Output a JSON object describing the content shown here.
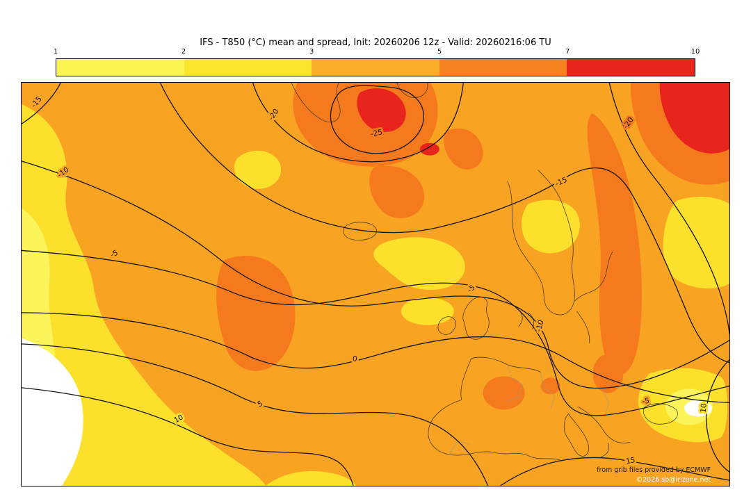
{
  "title": "IFS - T850 (°C) mean and spread, Init: 20260206 12z - Valid: 20260216:06 TU",
  "colorbar": {
    "tick_labels": [
      "1",
      "2",
      "3",
      "5",
      "7",
      "10"
    ],
    "segments": [
      {
        "range": "1-2",
        "color": "#FCF452"
      },
      {
        "range": "2-3",
        "color": "#FAE62C"
      },
      {
        "range": "3-5",
        "color": "#F9AE29"
      },
      {
        "range": "5-7",
        "color": "#F5831F"
      },
      {
        "range": "7-10",
        "color": "#E8251D"
      }
    ]
  },
  "map": {
    "palette": {
      "spread_below_1": "#FFFFFF",
      "spread_1_2": "#FCF45B",
      "spread_2_3": "#FBE02C",
      "spread_3_5": "#F9A322",
      "spread_5_7": "#F57A1E",
      "spread_7_10": "#E8251D"
    },
    "contour_levels_c": [
      -25,
      -20,
      -15,
      -10,
      -5,
      0,
      5,
      10,
      15
    ],
    "contour_labels": [
      {
        "text": "-25"
      },
      {
        "text": "-20"
      },
      {
        "text": "-20"
      },
      {
        "text": "-15"
      },
      {
        "text": "-15"
      },
      {
        "text": "-10"
      },
      {
        "text": "-10"
      },
      {
        "text": "-5"
      },
      {
        "text": "-5"
      },
      {
        "text": "-5"
      },
      {
        "text": "0"
      },
      {
        "text": "5"
      },
      {
        "text": "10"
      },
      {
        "text": "10"
      },
      {
        "text": "15"
      }
    ],
    "credit_line1": "from grib files provided by ECMWF",
    "credit_line2": "©2026 sb@irizone.net"
  }
}
